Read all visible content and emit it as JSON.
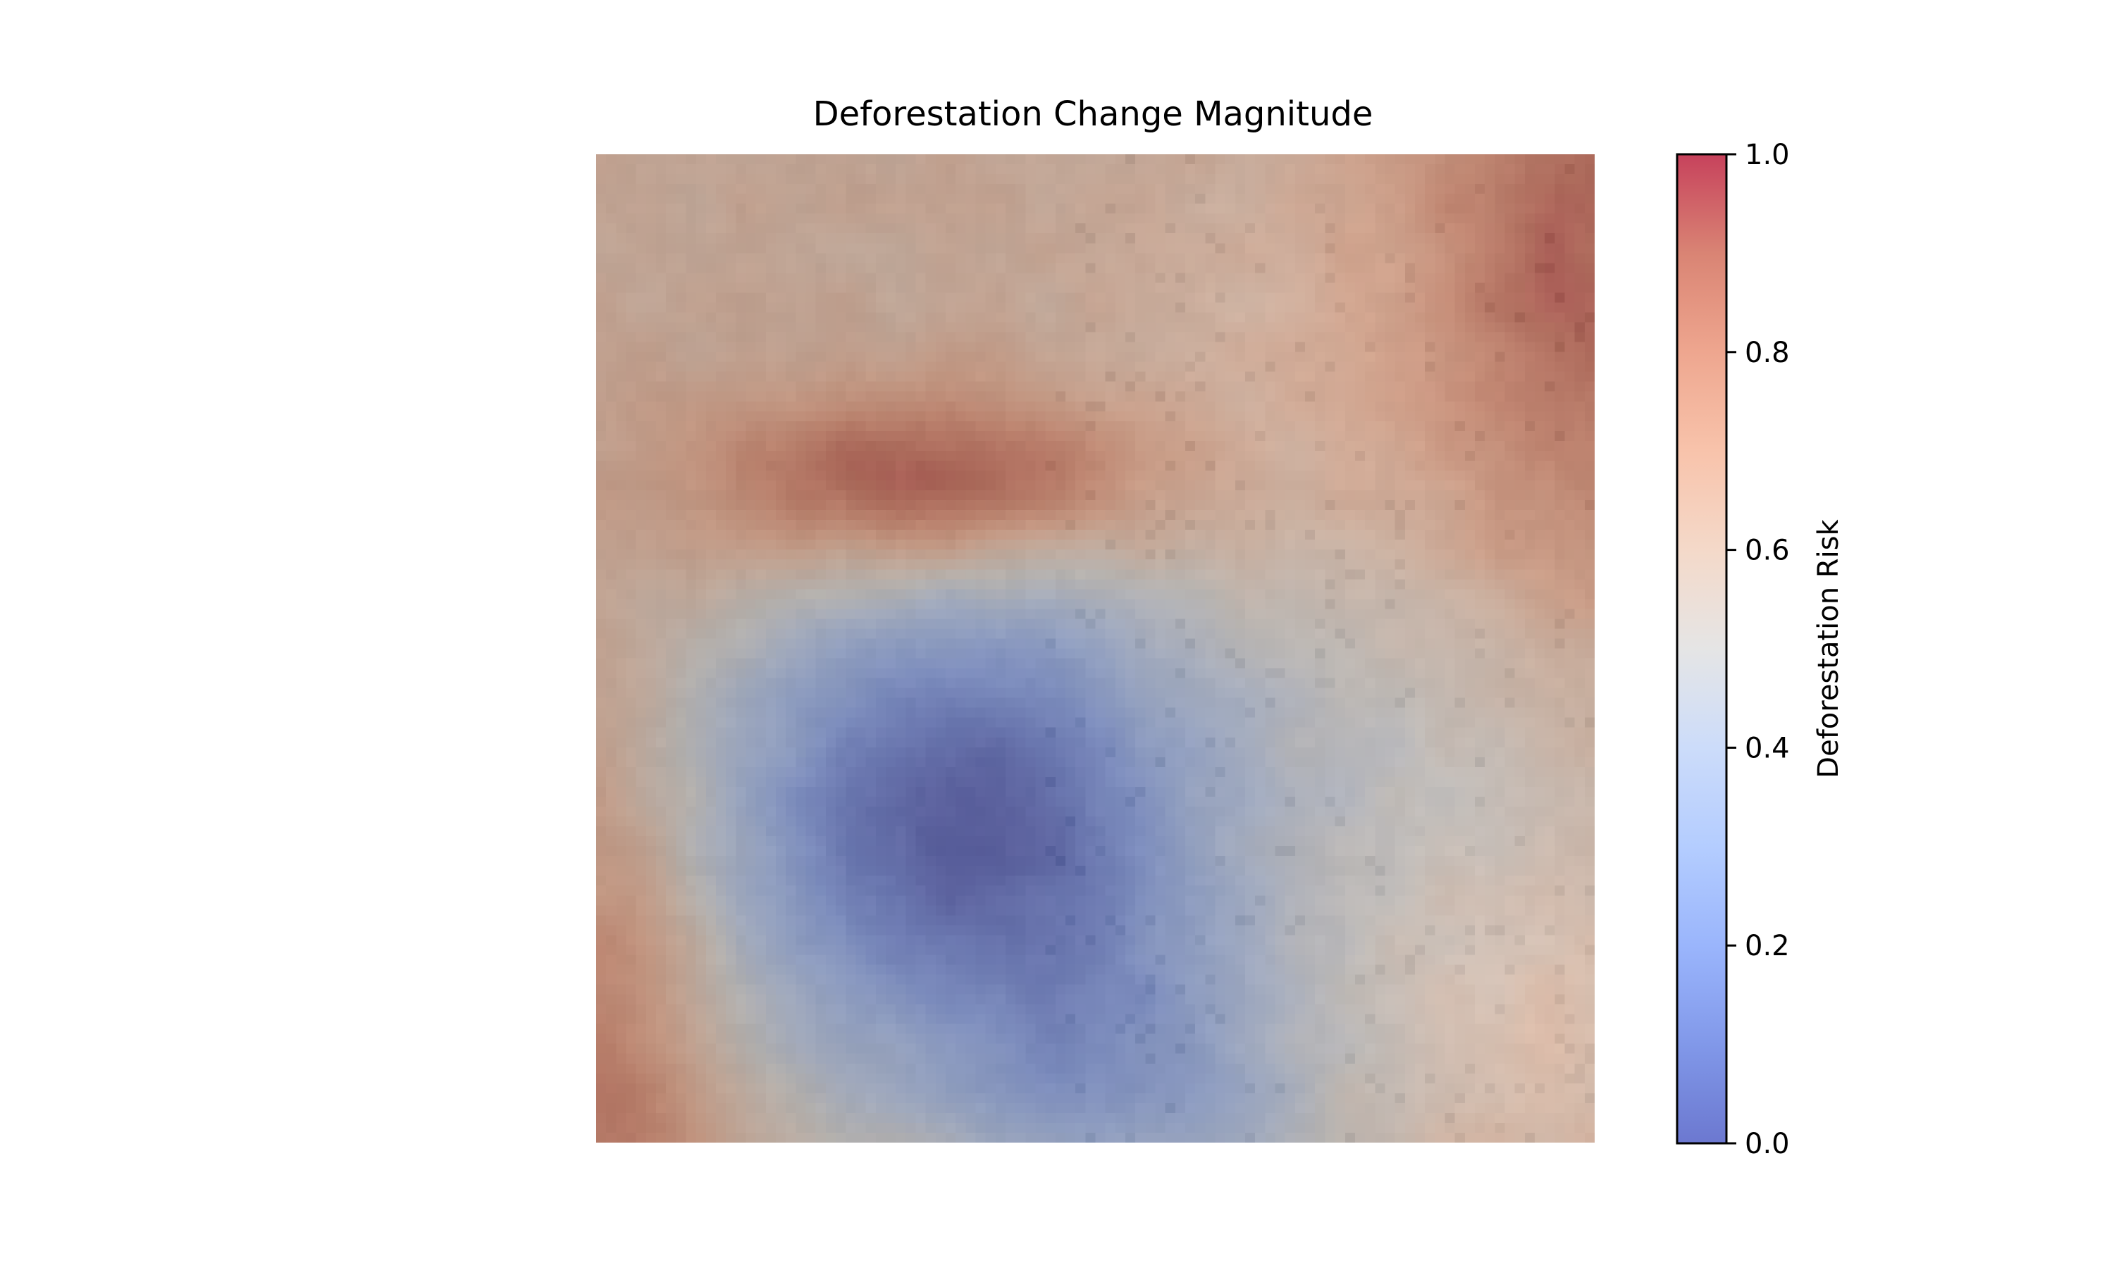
{
  "chart_data": {
    "type": "heatmap",
    "title": "Deforestation Change Magnitude",
    "xlabel": "",
    "ylabel": "",
    "axes_visible": false,
    "grid": false,
    "colormap": "coolwarm",
    "overlay_opacity": 0.55,
    "base_image_colors": {
      "dark_ground": "#6b6259",
      "light_ground": "#c9bfb6",
      "speckle": "#5a4e46"
    },
    "colorbar": {
      "label": "Deforestation Risk",
      "vmin": 0.0,
      "vmax": 1.0,
      "ticks": [
        0.0,
        0.2,
        0.4,
        0.6,
        0.8,
        1.0
      ],
      "tick_labels": [
        "0.0",
        "0.2",
        "0.4",
        "0.6",
        "0.8",
        "1.0"
      ],
      "position": "right"
    },
    "grid_size": [
      100,
      100
    ],
    "risk_field": {
      "description_points": [
        {
          "region": "upper-left-center hotspot",
          "value": 1.0
        },
        {
          "region": "top-right corner",
          "value": 0.92
        },
        {
          "region": "top-center light area",
          "value": 0.8
        },
        {
          "region": "left edge",
          "value": 0.85
        },
        {
          "region": "bottom-left corner",
          "value": 0.95
        },
        {
          "region": "center-left blue basin",
          "value": 0.0
        },
        {
          "region": "bottom-center",
          "value": 0.2
        },
        {
          "region": "right-center",
          "value": 0.45
        },
        {
          "region": "bottom-right",
          "value": 0.58
        }
      ]
    },
    "colors": {
      "cold": "#3b4cc0",
      "neutral": "#dddddd",
      "hot": "#b40426"
    }
  }
}
